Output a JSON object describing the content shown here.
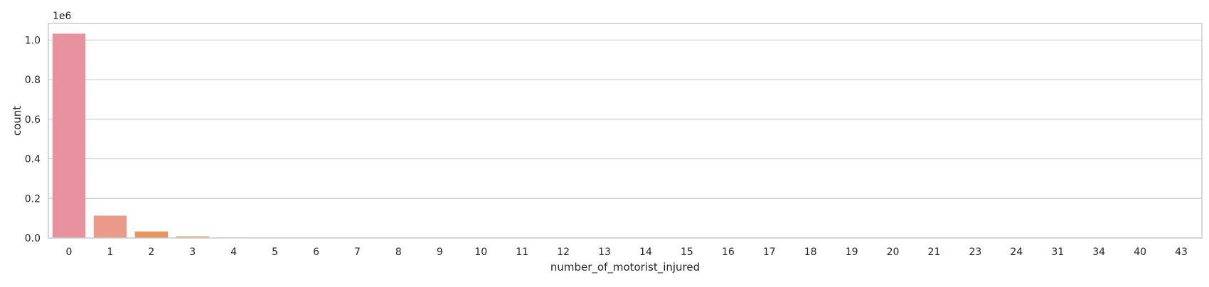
{
  "chart_data": {
    "type": "bar",
    "categories": [
      "0",
      "1",
      "2",
      "3",
      "4",
      "5",
      "6",
      "7",
      "8",
      "9",
      "10",
      "11",
      "12",
      "13",
      "14",
      "15",
      "16",
      "17",
      "18",
      "19",
      "20",
      "21",
      "23",
      "24",
      "31",
      "34",
      "40",
      "43"
    ],
    "values": [
      1032000,
      113000,
      33000,
      9000,
      2500,
      900,
      350,
      150,
      70,
      40,
      20,
      10,
      6,
      4,
      3,
      2,
      2,
      1,
      1,
      1,
      1,
      1,
      1,
      1,
      1,
      1,
      1,
      1
    ],
    "colors": [
      "#e8919f",
      "#e99a8a",
      "#e6955f",
      "#e2b389",
      "#d1c07b",
      "#c1c96e",
      "#a8cc6a",
      "#8ecf6c",
      "#6bd17f",
      "#67cf99",
      "#6acfb2",
      "#6ccdc7",
      "#6dcbd6",
      "#6fc7e2",
      "#75c0ec",
      "#85b7f0",
      "#9bb0f1",
      "#b0a8f1",
      "#c2a1f0",
      "#d39bec",
      "#e096e2",
      "#e792d5",
      "#ea91c6",
      "#eb91b8",
      "#ea92ad",
      "#e993a4",
      "#e8919f",
      "#e8919f"
    ],
    "xlabel": "number_of_motorist_injured",
    "ylabel": "count",
    "scale_label": "1e6",
    "yticks": [
      "0.0",
      "0.2",
      "0.4",
      "0.6",
      "0.8",
      "1.0"
    ],
    "ytick_values": [
      0,
      200000,
      400000,
      600000,
      800000,
      1000000
    ],
    "ylim": [
      0,
      1083600
    ],
    "grid": "horizontal",
    "grid_color": "#cccccc",
    "frame_color": "#cccccc"
  }
}
